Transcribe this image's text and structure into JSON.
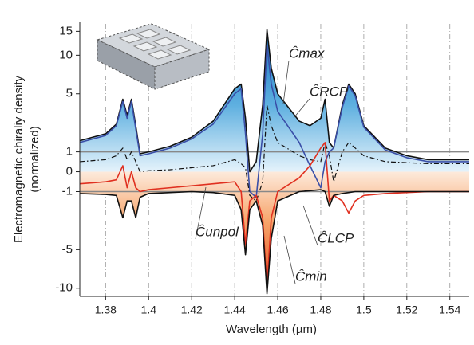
{
  "chart_data": {
    "type": "line",
    "xlabel": "Wavelength (µm)",
    "ylabel": [
      "Electromagnetic chiraliy density",
      "(normalized)"
    ],
    "x": [
      1.368,
      1.38,
      1.385,
      1.388,
      1.39,
      1.392,
      1.394,
      1.396,
      1.4,
      1.41,
      1.42,
      1.43,
      1.44,
      1.443,
      1.445,
      1.447,
      1.45,
      1.453,
      1.455,
      1.457,
      1.46,
      1.47,
      1.475,
      1.48,
      1.482,
      1.484,
      1.486,
      1.49,
      1.493,
      1.496,
      1.5,
      1.51,
      1.52,
      1.53,
      1.549
    ],
    "series": [
      {
        "name": "Ĉmax",
        "color": "#111111",
        "fill": "blue",
        "values": [
          1.6,
          2.0,
          2.6,
          4.5,
          3.2,
          4.5,
          2.5,
          0.9,
          1.0,
          1.3,
          1.8,
          2.8,
          5.5,
          6,
          3,
          0,
          0.5,
          4,
          15.5,
          8,
          5,
          2.8,
          2.5,
          3,
          4.5,
          1.5,
          1.2,
          4,
          6,
          5,
          2.5,
          1.2,
          0.8,
          0.6,
          0.6
        ]
      },
      {
        "name": "ĈRCP",
        "color": "#3a4fa8",
        "values": [
          1.5,
          1.9,
          2.5,
          4.3,
          3.0,
          4.3,
          2.3,
          0.8,
          0.9,
          1.2,
          1.7,
          2.6,
          5,
          5.5,
          2,
          -1,
          -1.3,
          2,
          12,
          6,
          3.5,
          1.5,
          0.3,
          -0.8,
          0.5,
          1,
          1.2,
          3.8,
          5.8,
          4.8,
          2.4,
          1.1,
          0.7,
          0.5,
          0.5
        ]
      },
      {
        "name": "Ĉunpol",
        "color": "#111111",
        "dash": true,
        "values": [
          0.5,
          0.6,
          0.8,
          1.2,
          0.6,
          1.0,
          0.5,
          0.0,
          0.05,
          0.1,
          0.2,
          0.3,
          0.6,
          0.4,
          0.2,
          -1.2,
          -1.5,
          -0.5,
          4,
          2.5,
          1.5,
          0.8,
          0.6,
          0.5,
          1.5,
          0.8,
          -0.5,
          1,
          1.5,
          1.2,
          0.8,
          0.5,
          0.45,
          0.4,
          0.4
        ]
      },
      {
        "name": "ĈLCP",
        "color": "#e03020",
        "values": [
          -0.6,
          -0.5,
          -0.4,
          0.3,
          -0.8,
          0.0,
          -0.8,
          -1.0,
          -0.9,
          -0.8,
          -0.7,
          -0.6,
          -0.5,
          -1.0,
          -4.5,
          -1.5,
          -1.2,
          -2.5,
          -10,
          -2.5,
          -1.0,
          -0.3,
          0.3,
          1.2,
          1.5,
          -1.5,
          -1.2,
          -1.5,
          -2.2,
          -1.5,
          -1.2,
          -1.1,
          -1.05,
          -1.0,
          -1.0
        ]
      },
      {
        "name": "Ĉmin",
        "color": "#111111",
        "fill": "orange",
        "values": [
          -1.1,
          -1.15,
          -1.2,
          -2.5,
          -1.5,
          -1.5,
          -2.5,
          -1.3,
          -1.1,
          -1.05,
          -1.0,
          -1.05,
          -1.2,
          -2,
          -5.5,
          -2,
          -1.5,
          -3,
          -11,
          -4,
          -1.5,
          -1.0,
          -0.95,
          -0.9,
          -1.0,
          -1.8,
          -1.2,
          -1.1,
          -1.05,
          -1.0,
          -1.0,
          -1.0,
          -1.0,
          -1.0,
          -1.0
        ]
      }
    ],
    "xlim": [
      1.368,
      1.549
    ],
    "xticks": [
      1.38,
      1.4,
      1.42,
      1.44,
      1.46,
      1.48,
      1.5,
      1.52,
      1.54
    ],
    "ylim": [
      -11.5,
      17
    ],
    "yticks": [
      15,
      10,
      5,
      1,
      0,
      -1,
      -5,
      -10
    ],
    "yscale": "asinh",
    "reference_lines": [
      1,
      -1
    ],
    "grid": "x"
  }
}
